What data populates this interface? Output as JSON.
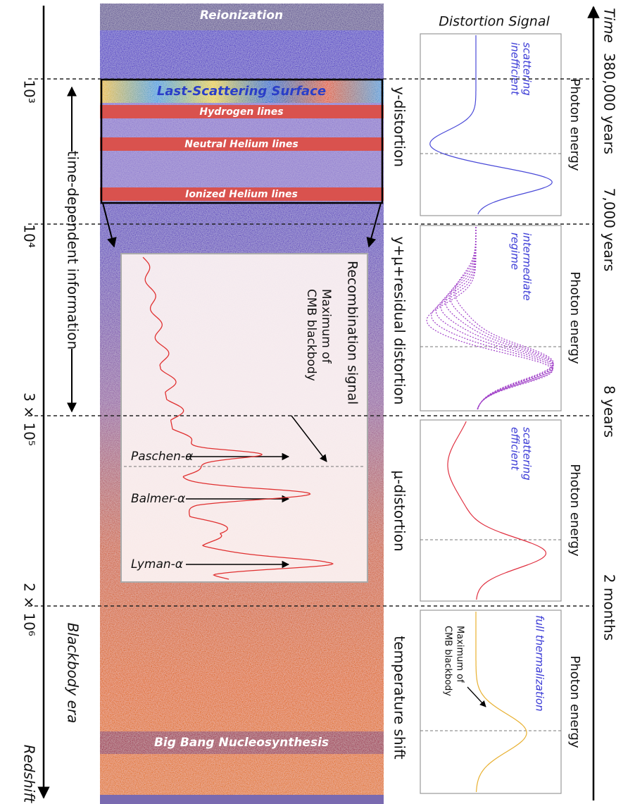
{
  "redshift_axis": {
    "label": "Redshift",
    "ticks": [
      "10³",
      "10⁴",
      "3 × 10⁵",
      "2 × 10⁶"
    ],
    "time_dependent": "time-dependent information",
    "blackbody_era": "Blackbody era"
  },
  "time_axis": {
    "label": "Time",
    "ticks": [
      "380,000 years",
      "7,000 years",
      "8 years",
      "2 months"
    ]
  },
  "bands": {
    "reionization": "Reionization",
    "last_scattering": "Last-Scattering Surface",
    "hydrogen": "Hydrogen lines",
    "neutral_helium": "Neutral Helium lines",
    "ionized_helium": "Ionized Helium lines",
    "nucleosynthesis": "Big Bang Nucleosynthesis"
  },
  "inset": {
    "title": "Recombination signal",
    "maximum": [
      "Maximum of",
      "CMB blackbody"
    ],
    "lines": [
      "Paschen-α",
      "Balmer-α",
      "Lyman-α"
    ]
  },
  "distortion_heading": "Distortion Signal",
  "regimes": [
    {
      "name": "y-distortion",
      "axis": "Photon energy",
      "note": [
        "scattering",
        "inefficient"
      ]
    },
    {
      "name": "y+μ+residual distortion",
      "axis": "Photon energy",
      "note": [
        "intermediate",
        "regime"
      ]
    },
    {
      "name": "μ-distortion",
      "axis": "Photon energy",
      "note": [
        "scattering",
        "efficient"
      ]
    },
    {
      "name": "temperature shift",
      "axis": "Photon energy",
      "note": [
        "full thermalization"
      ],
      "maximum": [
        "Maximum of",
        "CMB blackbody"
      ]
    }
  ]
}
